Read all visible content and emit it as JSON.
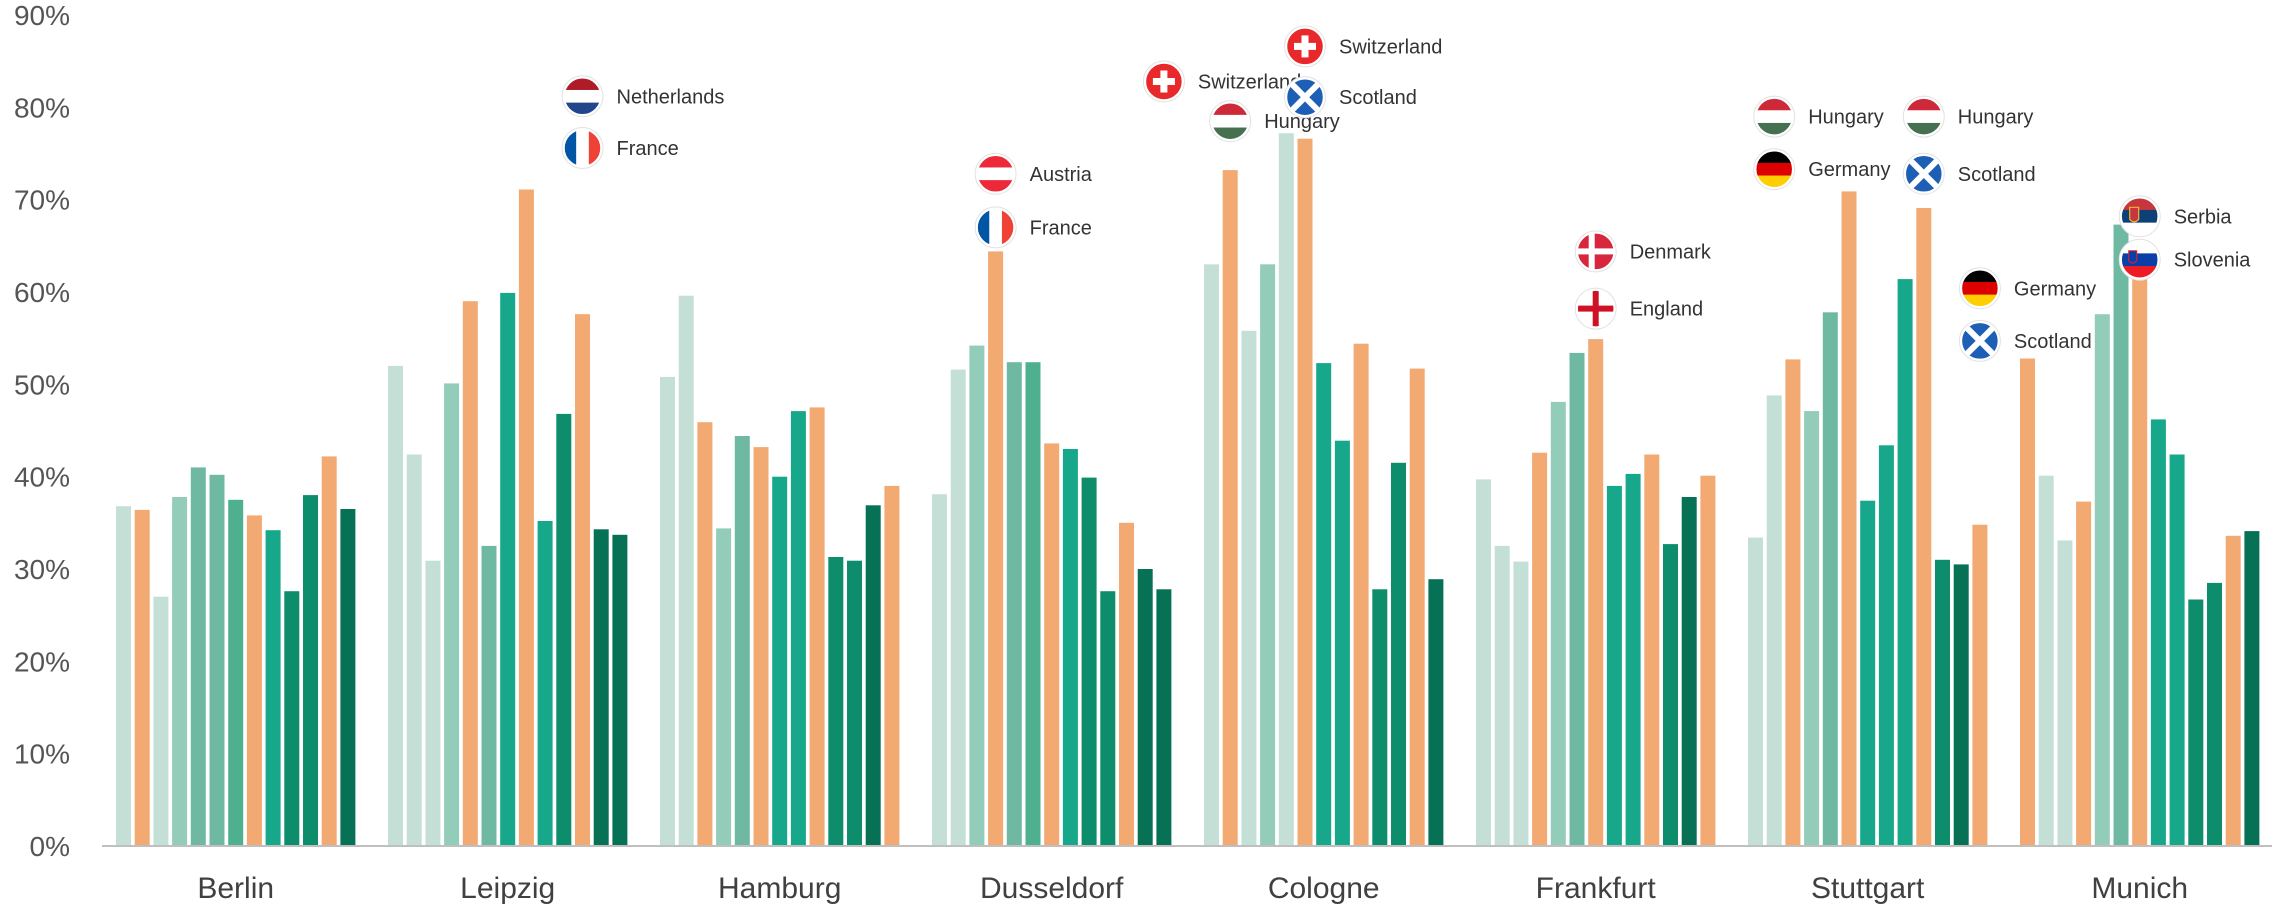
{
  "chart_data": {
    "type": "bar",
    "categories": [
      "Berlin",
      "Leipzig",
      "Hamburg",
      "Dusseldorf",
      "Cologne",
      "Frankfurt",
      "Stuttgart",
      "Munich"
    ],
    "ylim": [
      0,
      90
    ],
    "yticks": [
      "0%",
      "10%",
      "20%",
      "30%",
      "40%",
      "50%",
      "60%",
      "70%",
      "80%",
      "90%"
    ],
    "grid": false,
    "legend": "none",
    "bars": [
      [
        {
          "v": 36.8,
          "c": "light"
        },
        {
          "v": 36.4,
          "c": "orange"
        },
        {
          "v": 27.0,
          "c": "light"
        },
        {
          "v": 37.8,
          "c": "mid1"
        },
        {
          "v": 41.0,
          "c": "mid2"
        },
        {
          "v": 40.2,
          "c": "mid2"
        },
        {
          "v": 37.5,
          "c": "mid3"
        },
        {
          "v": 35.8,
          "c": "orange"
        },
        {
          "v": 34.2,
          "c": "teal1"
        },
        {
          "v": 27.6,
          "c": "teal2"
        },
        {
          "v": 38.0,
          "c": "teal2"
        },
        {
          "v": 42.2,
          "c": "orange"
        },
        {
          "v": 36.5,
          "c": "dark"
        }
      ],
      [
        {
          "v": 52.0,
          "c": "light"
        },
        {
          "v": 42.4,
          "c": "light"
        },
        {
          "v": 30.9,
          "c": "light"
        },
        {
          "v": 50.1,
          "c": "mid1"
        },
        {
          "v": 59.0,
          "c": "orange"
        },
        {
          "v": 32.5,
          "c": "mid2"
        },
        {
          "v": 59.9,
          "c": "teal1"
        },
        {
          "v": 71.1,
          "c": "orange"
        },
        {
          "v": 35.2,
          "c": "teal1"
        },
        {
          "v": 46.8,
          "c": "teal2"
        },
        {
          "v": 57.6,
          "c": "orange"
        },
        {
          "v": 34.3,
          "c": "dark"
        },
        {
          "v": 33.7,
          "c": "dark"
        }
      ],
      [
        {
          "v": 50.8,
          "c": "light"
        },
        {
          "v": 59.6,
          "c": "light"
        },
        {
          "v": 45.9,
          "c": "orange"
        },
        {
          "v": 34.4,
          "c": "mid1"
        },
        {
          "v": 44.4,
          "c": "mid2"
        },
        {
          "v": 43.2,
          "c": "orange"
        },
        {
          "v": 40.0,
          "c": "teal1"
        },
        {
          "v": 47.1,
          "c": "teal1"
        },
        {
          "v": 47.5,
          "c": "orange"
        },
        {
          "v": 31.3,
          "c": "teal2"
        },
        {
          "v": 30.9,
          "c": "teal2"
        },
        {
          "v": 36.9,
          "c": "dark"
        },
        {
          "v": 39.0,
          "c": "orange"
        }
      ],
      [
        {
          "v": 38.1,
          "c": "light"
        },
        {
          "v": 51.6,
          "c": "light"
        },
        {
          "v": 54.2,
          "c": "mid1"
        },
        {
          "v": 64.4,
          "c": "orange"
        },
        {
          "v": 52.4,
          "c": "mid2"
        },
        {
          "v": 52.4,
          "c": "mid3"
        },
        {
          "v": 43.6,
          "c": "orange"
        },
        {
          "v": 43.0,
          "c": "teal1"
        },
        {
          "v": 39.9,
          "c": "teal2"
        },
        {
          "v": 27.6,
          "c": "teal2"
        },
        {
          "v": 35.0,
          "c": "orange"
        },
        {
          "v": 30.0,
          "c": "dark"
        },
        {
          "v": 27.8,
          "c": "dark"
        }
      ],
      [
        {
          "v": 63.0,
          "c": "light"
        },
        {
          "v": 73.2,
          "c": "orange"
        },
        {
          "v": 55.8,
          "c": "light"
        },
        {
          "v": 63.0,
          "c": "mid1"
        },
        {
          "v": 77.2,
          "c": "light"
        },
        {
          "v": 76.6,
          "c": "orange"
        },
        {
          "v": 52.3,
          "c": "teal1"
        },
        {
          "v": 43.9,
          "c": "teal1"
        },
        {
          "v": 54.4,
          "c": "orange"
        },
        {
          "v": 27.8,
          "c": "teal2"
        },
        {
          "v": 41.5,
          "c": "teal2"
        },
        {
          "v": 51.7,
          "c": "orange"
        },
        {
          "v": 28.9,
          "c": "dark"
        }
      ],
      [
        {
          "v": 39.7,
          "c": "light"
        },
        {
          "v": 32.5,
          "c": "light"
        },
        {
          "v": 30.8,
          "c": "light"
        },
        {
          "v": 42.6,
          "c": "orange"
        },
        {
          "v": 48.1,
          "c": "mid1"
        },
        {
          "v": 53.4,
          "c": "mid2"
        },
        {
          "v": 54.9,
          "c": "orange"
        },
        {
          "v": 39.0,
          "c": "teal1"
        },
        {
          "v": 40.3,
          "c": "teal1"
        },
        {
          "v": 42.4,
          "c": "orange"
        },
        {
          "v": 32.7,
          "c": "teal2"
        },
        {
          "v": 37.8,
          "c": "dark"
        },
        {
          "v": 40.1,
          "c": "orange"
        }
      ],
      [
        {
          "v": 33.4,
          "c": "light"
        },
        {
          "v": 48.8,
          "c": "light"
        },
        {
          "v": 52.7,
          "c": "orange"
        },
        {
          "v": 47.1,
          "c": "mid1"
        },
        {
          "v": 57.8,
          "c": "mid2"
        },
        {
          "v": 70.9,
          "c": "orange"
        },
        {
          "v": 37.4,
          "c": "teal1"
        },
        {
          "v": 43.4,
          "c": "teal1"
        },
        {
          "v": 61.4,
          "c": "teal1"
        },
        {
          "v": 69.1,
          "c": "orange"
        },
        {
          "v": 31.0,
          "c": "teal2"
        },
        {
          "v": 30.5,
          "c": "dark"
        },
        {
          "v": 34.8,
          "c": "orange"
        }
      ],
      [
        {
          "v": 52.8,
          "c": "orange"
        },
        {
          "v": 40.1,
          "c": "light"
        },
        {
          "v": 33.1,
          "c": "light"
        },
        {
          "v": 37.3,
          "c": "orange"
        },
        {
          "v": 57.6,
          "c": "mid1"
        },
        {
          "v": 67.3,
          "c": "mid2"
        },
        {
          "v": 61.8,
          "c": "orange"
        },
        {
          "v": 46.2,
          "c": "teal1"
        },
        {
          "v": 42.4,
          "c": "teal1"
        },
        {
          "v": 26.7,
          "c": "teal2"
        },
        {
          "v": 28.5,
          "c": "teal2"
        },
        {
          "v": 33.6,
          "c": "orange"
        },
        {
          "v": 34.1,
          "c": "dark"
        }
      ]
    ],
    "colors": {
      "light": "#c4e0d6",
      "mid1": "#93cdb9",
      "mid2": "#6fb9a2",
      "mid3": "#4fb08f",
      "teal1": "#17a88c",
      "teal2": "#0e8d6d",
      "dark": "#077156",
      "orange": "#f2aa72",
      "axis": "#bfbfbf",
      "tick_text": "#555555",
      "category_text": "#404040"
    },
    "annotations": [
      {
        "cat": 1,
        "bar": 10,
        "y": 81.2,
        "country": "Netherlands",
        "flag": "netherlands-flag-icon"
      },
      {
        "cat": 1,
        "bar": 10,
        "y": 75.6,
        "country": "France",
        "flag": "france-flag-icon"
      },
      {
        "cat": 3,
        "bar": 3,
        "y": 72.8,
        "country": "Austria",
        "flag": "austria-flag-icon"
      },
      {
        "cat": 3,
        "bar": 3,
        "y": 67.0,
        "country": "France",
        "flag": "france-flag-icon"
      },
      {
        "cat": 3,
        "bar": 12,
        "y": 82.8,
        "country": "Switzerland",
        "flag": "switzerland-flag-icon"
      },
      {
        "cat": 4,
        "bar": 1,
        "y": 78.5,
        "country": "Hungary",
        "flag": "hungary-flag-icon"
      },
      {
        "cat": 4,
        "bar": 5,
        "y": 86.6,
        "country": "Switzerland",
        "flag": "switzerland-flag-icon"
      },
      {
        "cat": 4,
        "bar": 5,
        "y": 81.1,
        "country": "Scotland",
        "flag": "scotland-flag-icon"
      },
      {
        "cat": 5,
        "bar": 6,
        "y": 64.4,
        "country": "Denmark",
        "flag": "denmark-flag-icon"
      },
      {
        "cat": 5,
        "bar": 6,
        "y": 58.2,
        "country": "England",
        "flag": "england-flag-icon"
      },
      {
        "cat": 6,
        "bar": 1,
        "y": 79.0,
        "country": "Hungary",
        "flag": "hungary-flag-icon"
      },
      {
        "cat": 6,
        "bar": 1,
        "y": 73.3,
        "country": "Germany",
        "flag": "germany-flag-icon"
      },
      {
        "cat": 6,
        "bar": 9,
        "y": 79.0,
        "country": "Hungary",
        "flag": "hungary-flag-icon"
      },
      {
        "cat": 6,
        "bar": 9,
        "y": 72.8,
        "country": "Scotland",
        "flag": "scotland-flag-icon"
      },
      {
        "cat": 6,
        "bar": 12,
        "y": 60.4,
        "country": "Germany",
        "flag": "germany-flag-icon"
      },
      {
        "cat": 6,
        "bar": 12,
        "y": 54.7,
        "country": "Scotland",
        "flag": "scotland-flag-icon"
      },
      {
        "cat": 7,
        "bar": 6,
        "y": 68.2,
        "country": "Serbia",
        "flag": "serbia-flag-icon"
      },
      {
        "cat": 7,
        "bar": 6,
        "y": 63.5,
        "country": "Slovenia",
        "flag": "slovenia-flag-icon"
      }
    ]
  }
}
